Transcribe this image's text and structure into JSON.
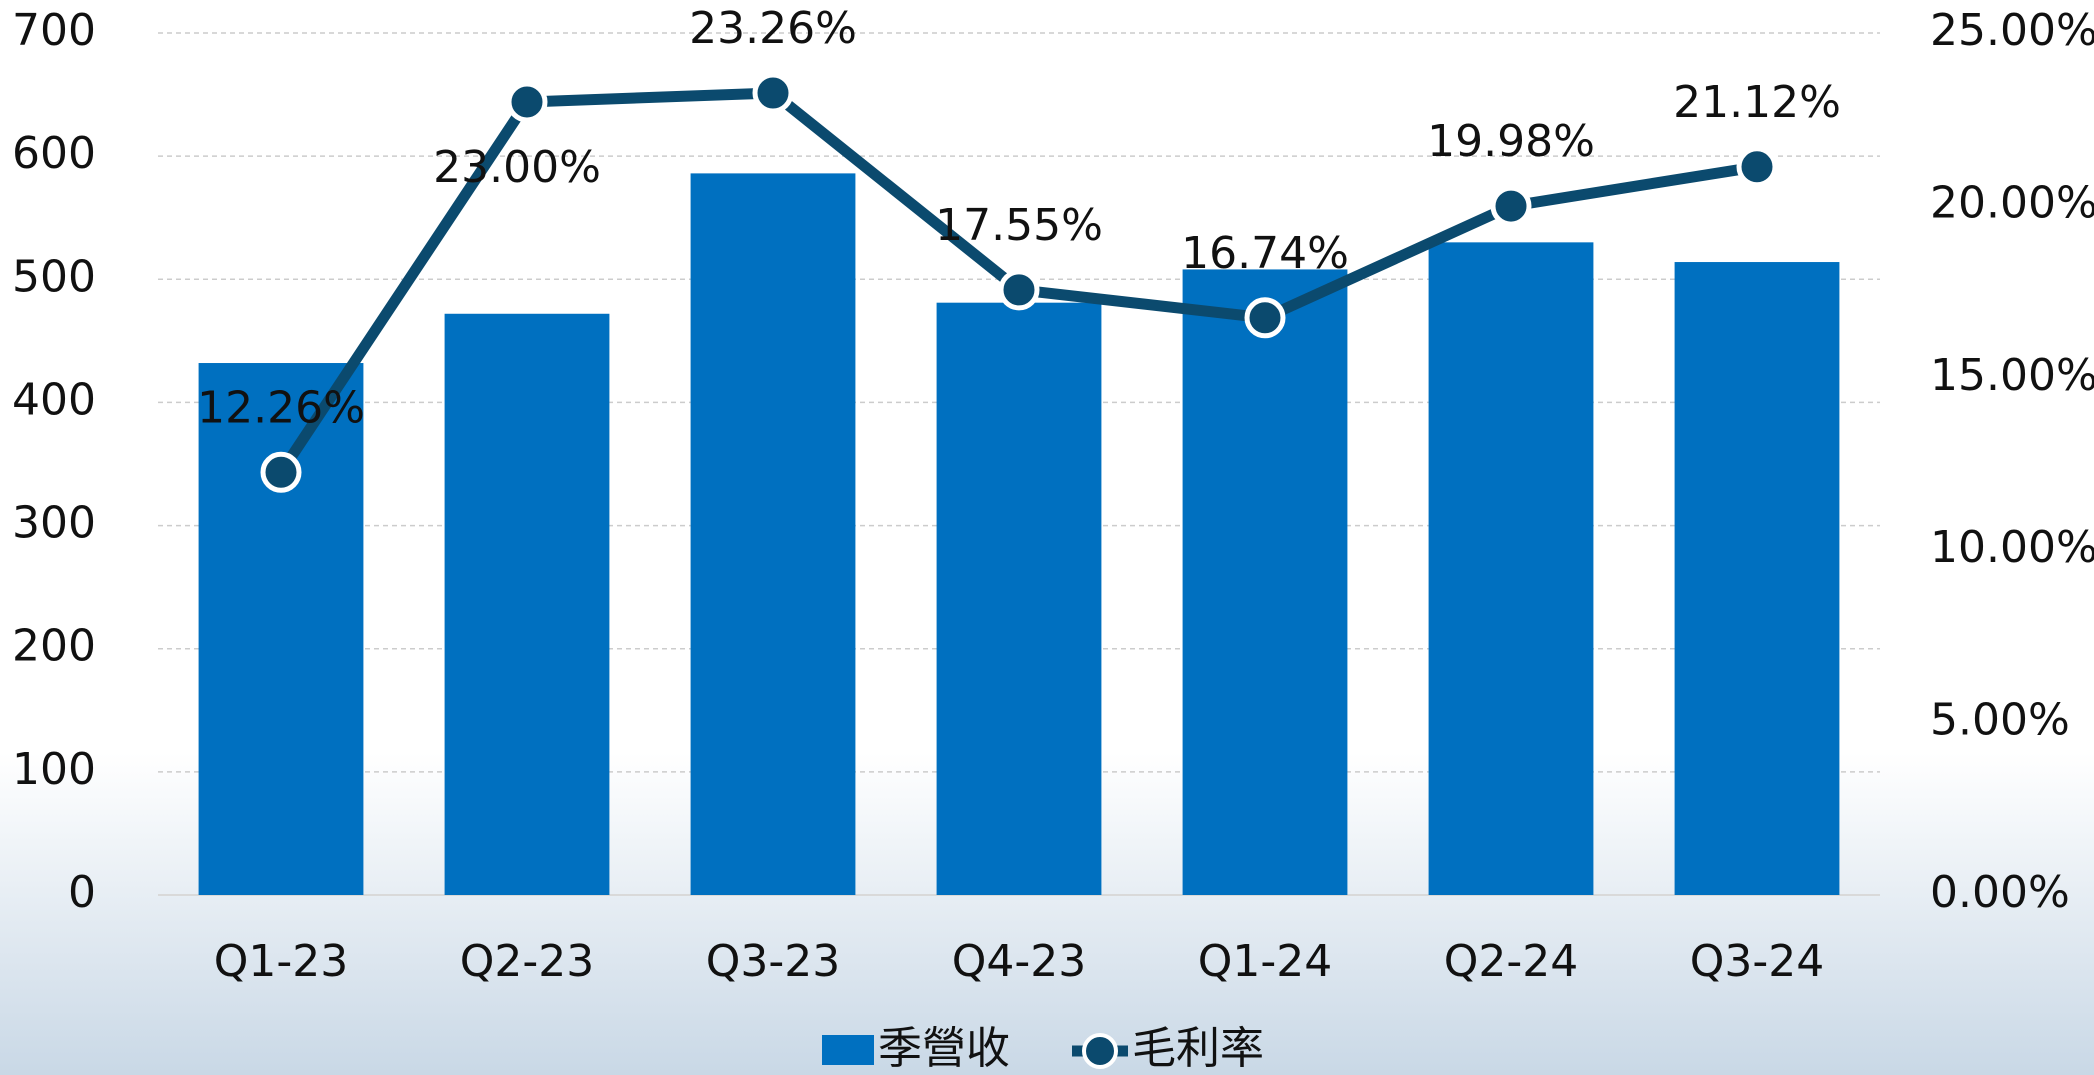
{
  "chart_data": {
    "type": "bar_line",
    "categories": [
      "Q1-23",
      "Q2-23",
      "Q3-23",
      "Q4-23",
      "Q1-24",
      "Q2-24",
      "Q3-24"
    ],
    "series": [
      {
        "name": "季營收",
        "type": "bar",
        "color": "#0070c0",
        "values": [
          432,
          472,
          586,
          481,
          508,
          530,
          514
        ]
      },
      {
        "name": "毛利率",
        "type": "line",
        "axis": "y2",
        "color": "#0b4a6e",
        "values": [
          12.26,
          23.0,
          23.26,
          17.55,
          16.74,
          19.98,
          21.12
        ],
        "value_labels": [
          "12.26%",
          "23.00%",
          "23.26%",
          "17.55%",
          "16.74%",
          "19.98%",
          "21.12%"
        ]
      }
    ],
    "ylim": [
      0,
      700
    ],
    "yticks": [
      0,
      100,
      200,
      300,
      400,
      500,
      600,
      700
    ],
    "y2lim": [
      0,
      25
    ],
    "y2ticks": [
      {
        "value": 0,
        "label": "0.00%"
      },
      {
        "value": 5,
        "label": "5.00%"
      },
      {
        "value": 10,
        "label": "10.00%"
      },
      {
        "value": 15,
        "label": "15.00%"
      },
      {
        "value": 20,
        "label": "20.00%"
      },
      {
        "value": 25,
        "label": "25.00%"
      }
    ],
    "grid": true,
    "legend": "bottom"
  }
}
